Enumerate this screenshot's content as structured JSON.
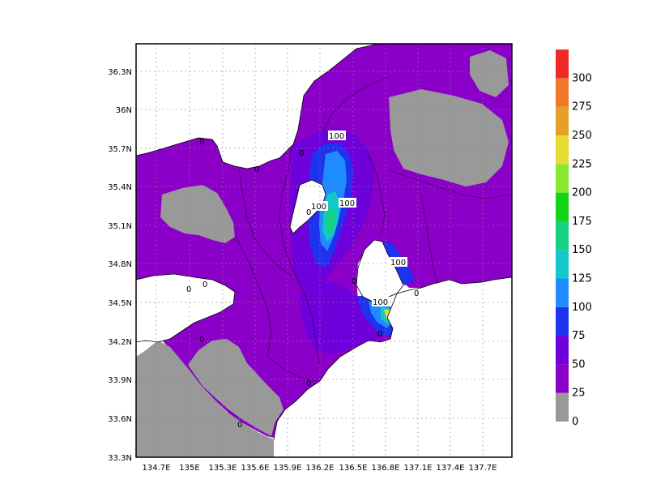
{
  "map": {
    "lat_ticks": [
      "36.3N",
      "36N",
      "35.7N",
      "35.4N",
      "35.1N",
      "34.8N",
      "34.5N",
      "34.2N",
      "33.9N",
      "33.6N",
      "33.3N"
    ],
    "lon_ticks": [
      "134.7E",
      "135E",
      "135.3E",
      "135.6E",
      "135.9E",
      "136.2E",
      "136.5E",
      "136.8E",
      "137.1E",
      "137.4E",
      "137.7E"
    ],
    "contour_labels": [
      "100",
      "100",
      "100",
      "100",
      "100",
      "0",
      "0",
      "0",
      "0",
      "0",
      "0",
      "0",
      "0",
      "0",
      "0",
      "0",
      "0"
    ],
    "colors": {
      "ocean": "#ffffff",
      "missing": "#999999",
      "frame": "#000000",
      "grid": "#8a8a8a"
    }
  },
  "legend": {
    "labels": [
      "0",
      "25",
      "50",
      "75",
      "100",
      "125",
      "150",
      "175",
      "200",
      "225",
      "250",
      "275",
      "300"
    ],
    "colors": [
      "#999999",
      "#8a00c8",
      "#6e00dc",
      "#1e32f0",
      "#1e8cff",
      "#14c8c8",
      "#14d282",
      "#14d214",
      "#8ce632",
      "#e6dc32",
      "#e6a028",
      "#f07828",
      "#f02828"
    ]
  }
}
